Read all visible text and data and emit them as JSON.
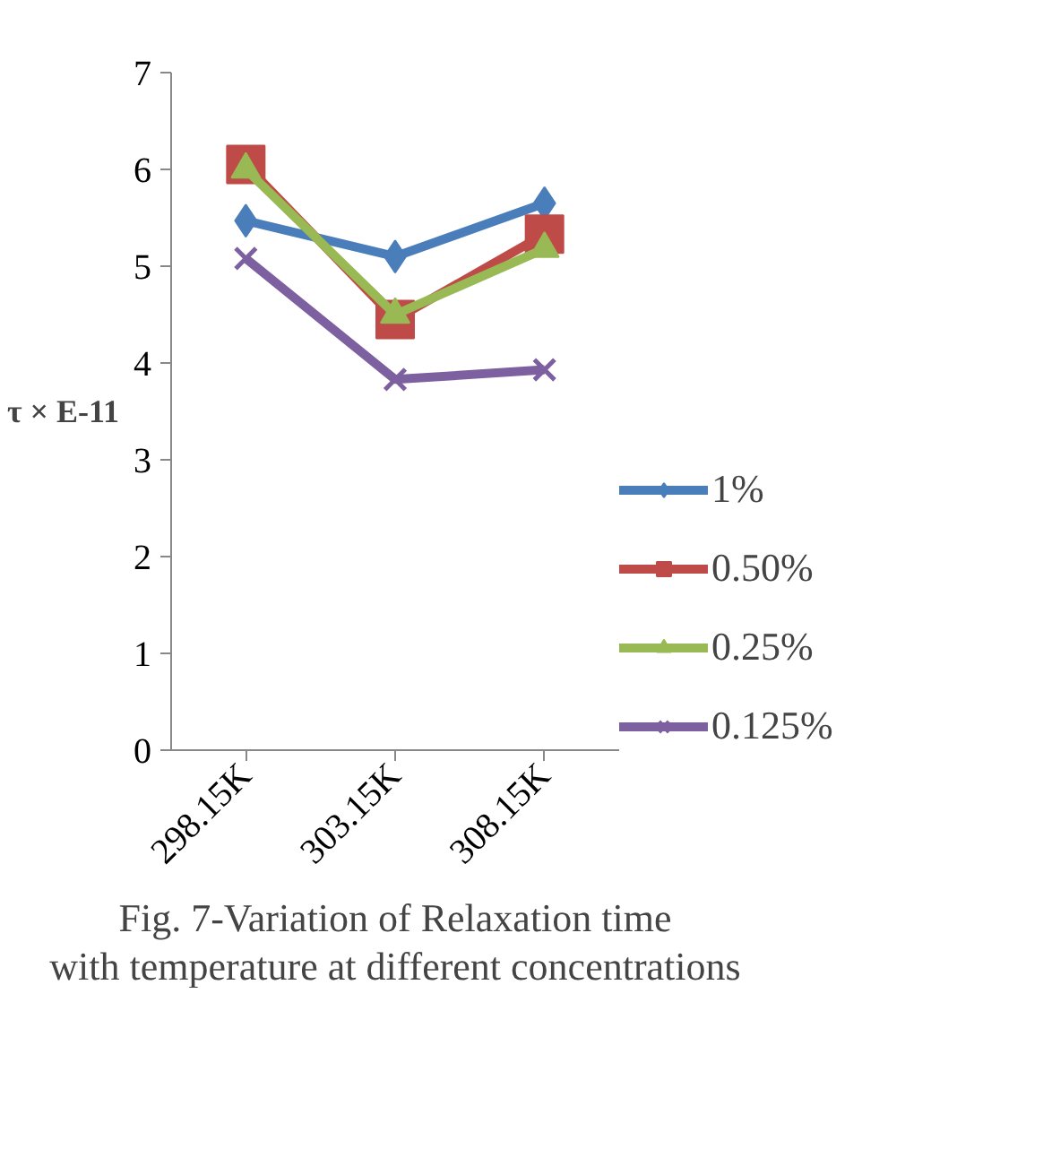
{
  "chart_data": {
    "type": "line",
    "ylabel": "τ × E-11",
    "categories": [
      "298.15K",
      "303.15K",
      "308.15K"
    ],
    "series": [
      {
        "name": "1%",
        "color": "#4a7ebb",
        "marker": "diamond",
        "values": [
          5.47,
          5.1,
          5.65
        ]
      },
      {
        "name": "0.50%",
        "color": "#be4b48",
        "marker": "square",
        "values": [
          6.05,
          4.45,
          5.33
        ]
      },
      {
        "name": "0.25%",
        "color": "#98b954",
        "marker": "triangle",
        "values": [
          6.0,
          4.5,
          5.18
        ]
      },
      {
        "name": "0.125%",
        "color": "#7d60a0",
        "marker": "cross",
        "values": [
          5.08,
          3.83,
          3.93
        ]
      }
    ],
    "ylim": [
      0,
      7
    ],
    "yticks": [
      0,
      1,
      2,
      3,
      4,
      5,
      6,
      7
    ],
    "legend": "right",
    "annotations": [
      "Fig. 7-Variation of Relaxation time with temperature at different concentrations"
    ]
  }
}
